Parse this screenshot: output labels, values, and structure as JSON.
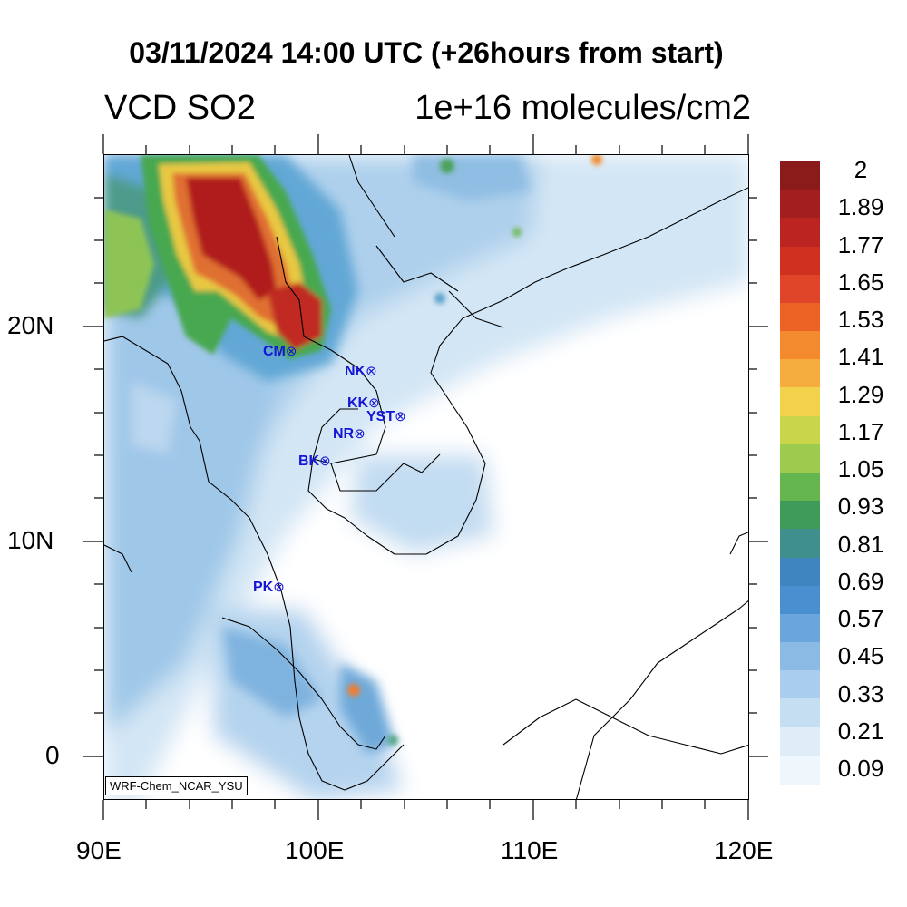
{
  "title": "03/11/2024 14:00 UTC (+26hours from start)",
  "variable_label": "VCD SO2",
  "units_label": "1e+16 molecules/cm2",
  "credit": "WRF-Chem_NCAR_YSU",
  "axes": {
    "x_ticks": [
      "90E",
      "100E",
      "110E",
      "120E"
    ],
    "y_ticks": [
      "20N",
      "10N",
      "0"
    ],
    "lon_range": [
      90,
      120
    ],
    "lat_range": [
      -2,
      28
    ]
  },
  "stations": [
    {
      "code": "CM",
      "lon": 98.9,
      "lat": 18.8
    },
    {
      "code": "NK",
      "lon": 102.7,
      "lat": 17.9
    },
    {
      "code": "KK",
      "lon": 102.8,
      "lat": 16.4
    },
    {
      "code": "YST",
      "lon": 104.1,
      "lat": 15.8
    },
    {
      "code": "NR",
      "lon": 102.1,
      "lat": 15.0
    },
    {
      "code": "BK",
      "lon": 100.5,
      "lat": 13.7
    },
    {
      "code": "PK",
      "lon": 98.4,
      "lat": 7.9
    }
  ],
  "station_marker": "⊗",
  "colorbar": {
    "labels": [
      "2",
      "1.89",
      "1.77",
      "1.65",
      "1.53",
      "1.41",
      "1.29",
      "1.17",
      "1.05",
      "0.93",
      "0.81",
      "0.69",
      "0.57",
      "0.45",
      "0.33",
      "0.21",
      "0.09"
    ],
    "colors": [
      "#8b1a1a",
      "#a31e1e",
      "#bb2420",
      "#cf3020",
      "#e0452a",
      "#ec6224",
      "#f38a2e",
      "#f5ad3e",
      "#f1d24a",
      "#c9d64a",
      "#9ccb4e",
      "#66b650",
      "#3f9c58",
      "#3f8f8c",
      "#3f86c0",
      "#4a8fd0",
      "#6aa6dc",
      "#8bbbe4",
      "#a9cdec",
      "#c6def2",
      "#dfedf8",
      "#f0f7fc"
    ]
  },
  "plumes": [
    {
      "region": "Myanmar / northern Thailand",
      "peak_value": 2.0
    },
    {
      "region": "Gulf of Thailand",
      "peak_value": 0.5
    },
    {
      "region": "Strait of Malacca",
      "peak_value": 1.4
    }
  ]
}
